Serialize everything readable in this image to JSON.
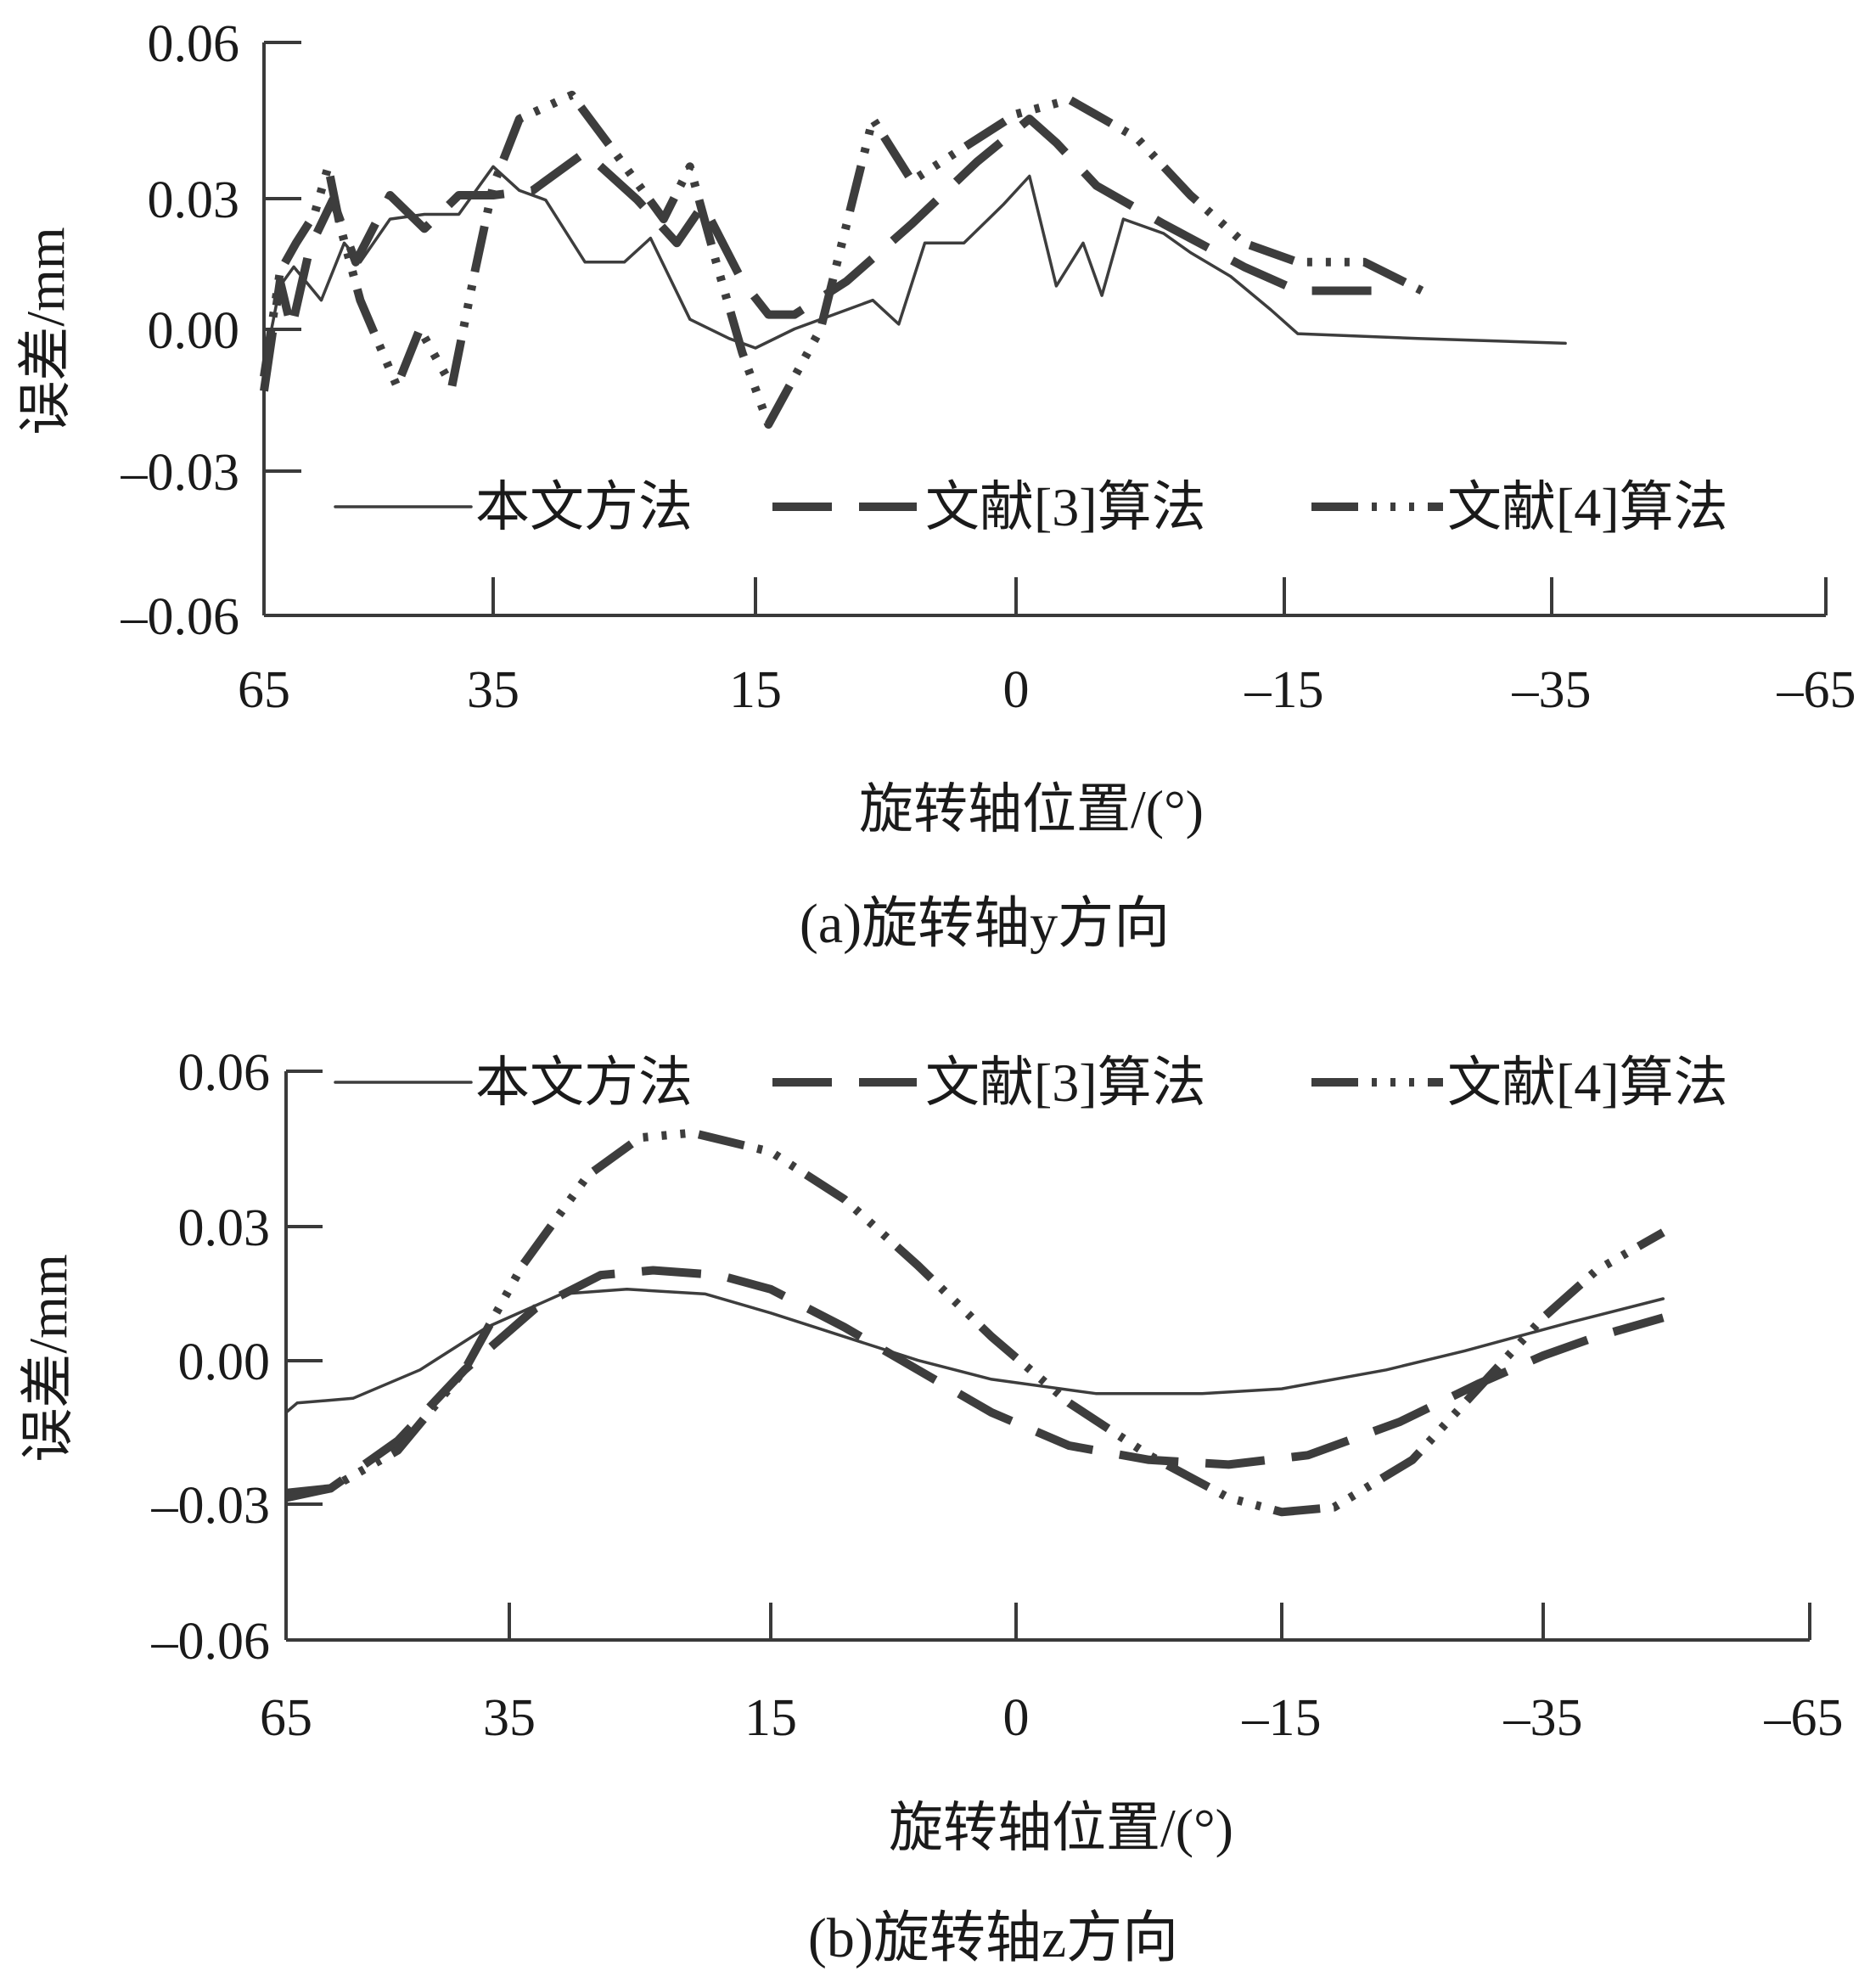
{
  "chart_data": [
    {
      "type": "line",
      "caption": "(a)旋转轴y方向",
      "xlabel": "旋转轴位置/(°)",
      "ylabel": "误差/mm",
      "x_ticks": [
        "65",
        "35",
        "15",
        "0",
        "–15",
        "–35",
        "–65"
      ],
      "y_ticks": [
        "0.06",
        "0.03",
        "0.00",
        "–0.03",
        "–0.06"
      ],
      "ylim": [
        -0.06,
        0.06
      ],
      "grid": false,
      "legend_position": "lower-center",
      "series": [
        {
          "name": "本文方法",
          "style": "solid",
          "points": [
            [
              0.0,
              -0.008
            ],
            [
              0.07,
              0.009
            ],
            [
              0.13,
              0.013
            ],
            [
              0.25,
              0.006
            ],
            [
              0.35,
              0.018
            ],
            [
              0.42,
              0.014
            ],
            [
              0.55,
              0.023
            ],
            [
              0.7,
              0.024
            ],
            [
              0.85,
              0.024
            ],
            [
              1.0,
              0.034
            ],
            [
              1.1,
              0.029
            ],
            [
              1.2,
              0.027
            ],
            [
              1.35,
              0.014
            ],
            [
              1.5,
              0.014
            ],
            [
              1.6,
              0.019
            ],
            [
              1.75,
              0.002
            ],
            [
              1.9,
              -0.002
            ],
            [
              2.0,
              -0.004
            ],
            [
              2.15,
              -0.0
            ],
            [
              2.3,
              0.003
            ],
            [
              2.45,
              0.006
            ],
            [
              2.55,
              0.001
            ],
            [
              2.65,
              0.018
            ],
            [
              2.8,
              0.018
            ],
            [
              2.95,
              0.026
            ],
            [
              3.05,
              0.032
            ],
            [
              3.15,
              0.009
            ],
            [
              3.25,
              0.018
            ],
            [
              3.32,
              0.007
            ],
            [
              3.4,
              0.023
            ],
            [
              3.55,
              0.02
            ],
            [
              3.65,
              0.016
            ],
            [
              3.8,
              0.011
            ],
            [
              3.95,
              0.004
            ],
            [
              4.05,
              -0.001
            ],
            [
              4.5,
              -0.002
            ],
            [
              5.05,
              -0.003
            ]
          ]
        },
        {
          "name": "文献[3]算法",
          "style": "dash",
          "points": [
            [
              0.0,
              -0.013
            ],
            [
              0.07,
              0.01
            ],
            [
              0.12,
              0.0
            ],
            [
              0.2,
              0.017
            ],
            [
              0.3,
              0.027
            ],
            [
              0.4,
              0.014
            ],
            [
              0.55,
              0.028
            ],
            [
              0.7,
              0.021
            ],
            [
              0.85,
              0.028
            ],
            [
              1.0,
              0.028
            ],
            [
              1.15,
              0.029
            ],
            [
              1.35,
              0.037
            ],
            [
              1.55,
              0.027
            ],
            [
              1.7,
              0.018
            ],
            [
              1.8,
              0.026
            ],
            [
              1.95,
              0.01
            ],
            [
              2.05,
              0.003
            ],
            [
              2.15,
              0.003
            ],
            [
              2.35,
              0.01
            ],
            [
              2.6,
              0.022
            ],
            [
              2.85,
              0.035
            ],
            [
              3.05,
              0.044
            ],
            [
              3.15,
              0.039
            ],
            [
              3.3,
              0.03
            ],
            [
              3.55,
              0.022
            ],
            [
              3.85,
              0.013
            ],
            [
              4.05,
              0.008
            ],
            [
              4.35,
              0.008
            ]
          ]
        },
        {
          "name": "文献[4]算法",
          "style": "dashdot",
          "points": [
            [
              0.0,
              -0.01
            ],
            [
              0.07,
              0.012
            ],
            [
              0.14,
              0.018
            ],
            [
              0.22,
              0.024
            ],
            [
              0.28,
              0.034
            ],
            [
              0.33,
              0.022
            ],
            [
              0.42,
              0.006
            ],
            [
              0.58,
              -0.012
            ],
            [
              0.68,
              -0.0
            ],
            [
              0.82,
              -0.012
            ],
            [
              0.92,
              0.012
            ],
            [
              1.0,
              0.03
            ],
            [
              1.1,
              0.044
            ],
            [
              1.3,
              0.049
            ],
            [
              1.45,
              0.038
            ],
            [
              1.65,
              0.023
            ],
            [
              1.75,
              0.034
            ],
            [
              1.85,
              0.014
            ],
            [
              1.95,
              -0.005
            ],
            [
              2.05,
              -0.02
            ],
            [
              2.25,
              0.0
            ],
            [
              2.45,
              0.044
            ],
            [
              2.6,
              0.031
            ],
            [
              2.8,
              0.038
            ],
            [
              3.0,
              0.045
            ],
            [
              3.2,
              0.048
            ],
            [
              3.45,
              0.04
            ],
            [
              3.65,
              0.028
            ],
            [
              3.85,
              0.018
            ],
            [
              4.05,
              0.014
            ],
            [
              4.3,
              0.014
            ],
            [
              4.55,
              0.007
            ]
          ]
        }
      ]
    },
    {
      "type": "line",
      "caption": "(b)旋转轴z方向",
      "xlabel": "旋转轴位置/(°)",
      "ylabel": "误差/mm",
      "x_ticks": [
        "65",
        "35",
        "15",
        "0",
        "–15",
        "–35",
        "–65"
      ],
      "y_ticks": [
        "0.06",
        "0.03",
        "0.00",
        "–0.03",
        "–0.06"
      ],
      "ylim": [
        -0.06,
        0.06
      ],
      "grid": false,
      "legend_position": "top-center",
      "series": [
        {
          "name": "本文方法",
          "style": "solid",
          "points": [
            [
              0.0,
              -0.012
            ],
            [
              0.05,
              -0.01
            ],
            [
              0.3,
              -0.009
            ],
            [
              0.6,
              -0.003
            ],
            [
              0.9,
              0.006
            ],
            [
              1.2,
              0.013
            ],
            [
              1.45,
              0.014
            ],
            [
              1.75,
              0.013
            ],
            [
              2.0,
              0.009
            ],
            [
              2.3,
              0.004
            ],
            [
              2.6,
              -0.001
            ],
            [
              2.9,
              -0.005
            ],
            [
              3.3,
              -0.008
            ],
            [
              3.7,
              -0.008
            ],
            [
              4.0,
              -0.007
            ],
            [
              4.4,
              -0.003
            ],
            [
              4.7,
              0.001
            ],
            [
              5.1,
              0.007
            ],
            [
              5.45,
              0.012
            ]
          ]
        },
        {
          "name": "文献[3]算法",
          "style": "dash",
          "points": [
            [
              0.0,
              -0.029
            ],
            [
              0.2,
              -0.028
            ],
            [
              0.5,
              -0.018
            ],
            [
              0.8,
              -0.003
            ],
            [
              1.1,
              0.01
            ],
            [
              1.35,
              0.017
            ],
            [
              1.55,
              0.018
            ],
            [
              1.8,
              0.017
            ],
            [
              2.0,
              0.014
            ],
            [
              2.3,
              0.006
            ],
            [
              2.6,
              -0.003
            ],
            [
              2.9,
              -0.012
            ],
            [
              3.2,
              -0.019
            ],
            [
              3.5,
              -0.022
            ],
            [
              3.8,
              -0.023
            ],
            [
              4.1,
              -0.021
            ],
            [
              4.45,
              -0.014
            ],
            [
              4.75,
              -0.006
            ],
            [
              5.0,
              0.0
            ],
            [
              5.2,
              0.004
            ],
            [
              5.45,
              0.008
            ]
          ]
        },
        {
          "name": "文献[4]算法",
          "style": "dashdot",
          "points": [
            [
              0.0,
              -0.03
            ],
            [
              0.2,
              -0.028
            ],
            [
              0.5,
              -0.02
            ],
            [
              0.8,
              -0.003
            ],
            [
              1.05,
              0.019
            ],
            [
              1.3,
              0.038
            ],
            [
              1.5,
              0.046
            ],
            [
              1.7,
              0.047
            ],
            [
              2.0,
              0.043
            ],
            [
              2.3,
              0.033
            ],
            [
              2.6,
              0.019
            ],
            [
              2.9,
              0.004
            ],
            [
              3.2,
              -0.01
            ],
            [
              3.5,
              -0.021
            ],
            [
              3.8,
              -0.03
            ],
            [
              4.0,
              -0.033
            ],
            [
              4.2,
              -0.032
            ],
            [
              4.5,
              -0.022
            ],
            [
              4.75,
              -0.007
            ],
            [
              5.0,
              0.008
            ],
            [
              5.2,
              0.018
            ],
            [
              5.45,
              0.026
            ]
          ]
        }
      ]
    }
  ]
}
